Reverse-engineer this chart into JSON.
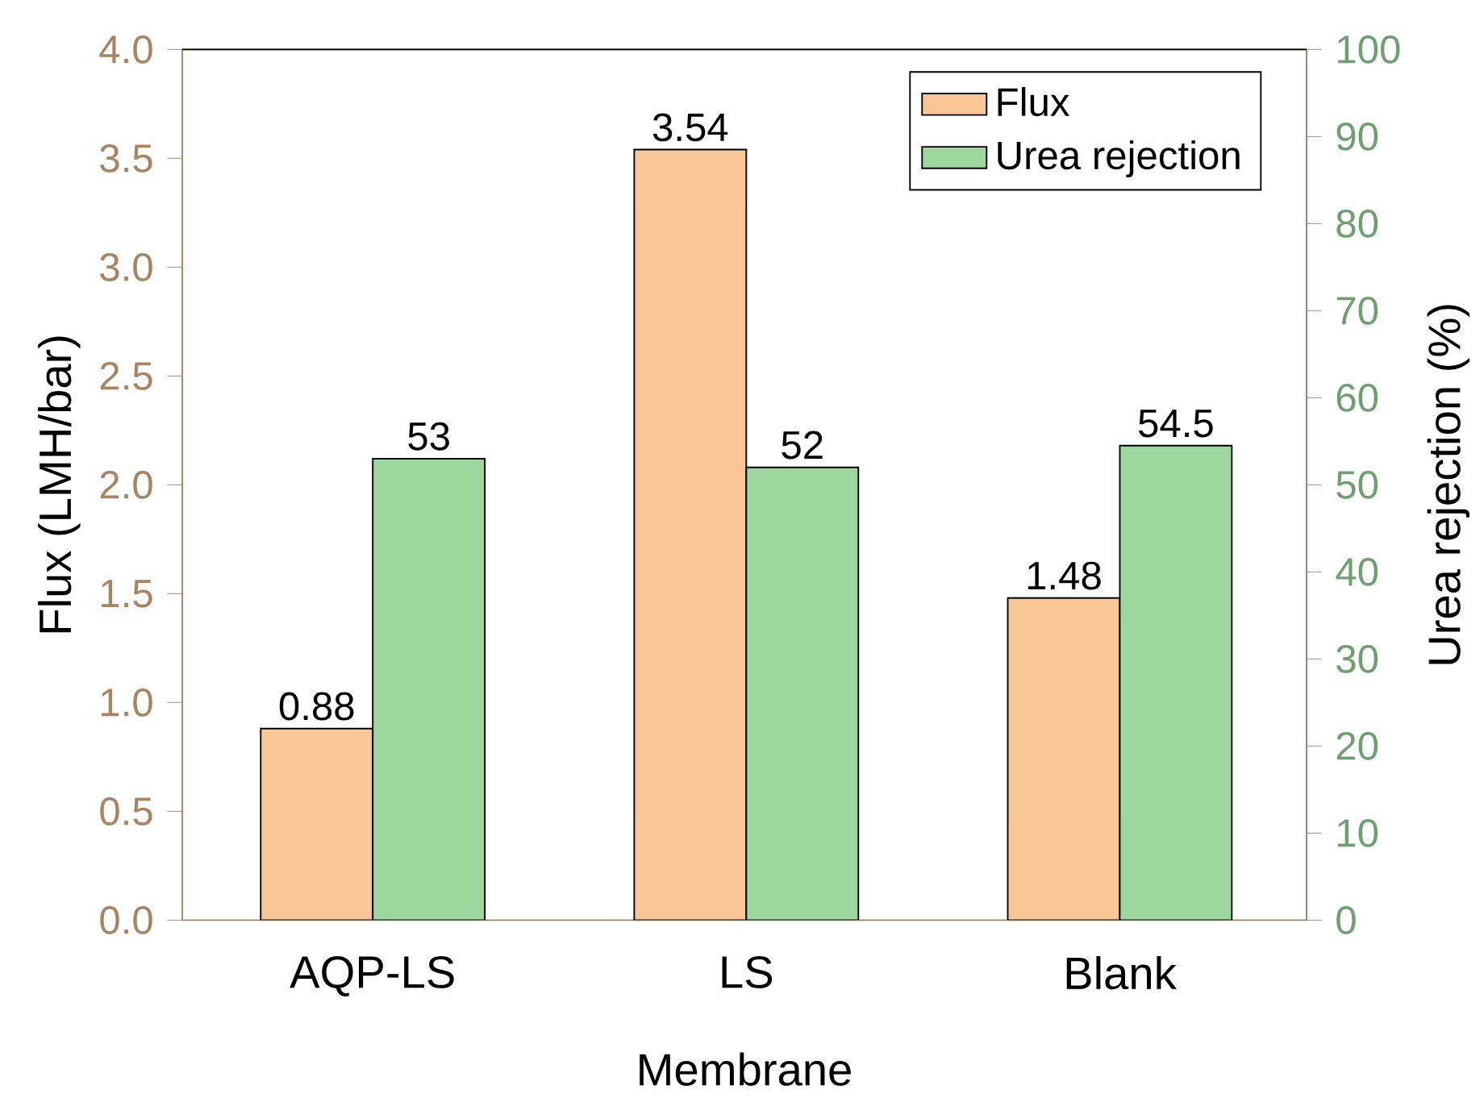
{
  "chart_data": {
    "type": "bar",
    "xlabel": "Membrane",
    "ylabel": "Flux (LMH/bar)",
    "y2label": "Urea rejection (%)",
    "categories": [
      "AQP-LS",
      "LS",
      "Blank"
    ],
    "series": [
      {
        "name": "Flux",
        "color": "#f9c795",
        "values": [
          0.88,
          3.54,
          1.48
        ],
        "value_labels": [
          "0.88",
          "3.54",
          "1.48"
        ]
      },
      {
        "name": "Urea rejection",
        "color": "#9dd79d",
        "values": [
          53,
          52,
          54.5
        ],
        "value_labels": [
          "53",
          "52",
          "54.5"
        ],
        "axis": "y2"
      }
    ],
    "ylim": [
      0,
      4
    ],
    "yticks": [
      {
        "value": 0,
        "label": "0.0"
      },
      {
        "value": 0.5,
        "label": "0.5"
      },
      {
        "value": 1,
        "label": "1.0"
      },
      {
        "value": 1.5,
        "label": "1.5"
      },
      {
        "value": 2,
        "label": "2.0"
      },
      {
        "value": 2.5,
        "label": "2.5"
      },
      {
        "value": 3,
        "label": "3.0"
      },
      {
        "value": 3.5,
        "label": "3.5"
      },
      {
        "value": 4,
        "label": "4.0"
      }
    ],
    "y2lim": [
      0,
      100
    ],
    "y2ticks": [
      0,
      10,
      20,
      30,
      40,
      50,
      60,
      70,
      80,
      90,
      100
    ],
    "legend": "top right"
  }
}
